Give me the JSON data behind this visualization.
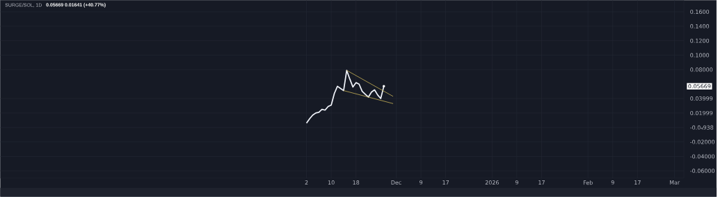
{
  "chart_data": {
    "type": "line",
    "title": "SURGE/SOL, 1D",
    "x": [
      "2025-11-02",
      "2025-11-03",
      "2025-11-04",
      "2025-11-05",
      "2025-11-06",
      "2025-11-07",
      "2025-11-08",
      "2025-11-09",
      "2025-11-10",
      "2025-11-11",
      "2025-11-12",
      "2025-11-13",
      "2025-11-14",
      "2025-11-15",
      "2025-11-16",
      "2025-11-17",
      "2025-11-18",
      "2025-11-19",
      "2025-11-20",
      "2025-11-21",
      "2025-11-22",
      "2025-11-23",
      "2025-11-24",
      "2025-11-25",
      "2025-11-26",
      "2025-11-27"
    ],
    "series": [
      {
        "color": "#f0f3fa",
        "values": [
          0.006,
          0.012,
          0.017,
          0.02,
          0.021,
          0.025,
          0.024,
          0.029,
          0.031,
          0.047,
          0.057,
          0.054,
          0.051,
          0.079,
          0.067,
          0.056,
          0.062,
          0.06,
          0.05,
          0.046,
          0.042,
          0.049,
          0.052,
          0.045,
          0.04,
          0.057
        ]
      },
      {
        "type": "line",
        "color": "#c9b458",
        "x": [
          "2025-11-15",
          "2025-11-30"
        ],
        "values": [
          0.079,
          0.043
        ]
      },
      {
        "type": "line",
        "color": "#c9b458",
        "x": [
          "2025-11-14",
          "2025-11-30"
        ],
        "values": [
          0.051,
          0.033
        ]
      }
    ],
    "xlim": [
      "2025-07-26",
      "2026-03-04"
    ],
    "xticks": [
      {
        "value": "2025-11-02",
        "label": "2"
      },
      {
        "value": "2025-11-10",
        "label": "10"
      },
      {
        "value": "2025-11-18",
        "label": "18"
      },
      {
        "value": "2025-12-01",
        "label": "Dec"
      },
      {
        "value": "2025-12-09",
        "label": "9"
      },
      {
        "value": "2025-12-17",
        "label": "17"
      },
      {
        "value": "2026-01-01",
        "label": "2026"
      },
      {
        "value": "2026-01-09",
        "label": "9"
      },
      {
        "value": "2026-01-17",
        "label": "17"
      },
      {
        "value": "2026-02-01",
        "label": "Feb"
      },
      {
        "value": "2026-02-09",
        "label": "9"
      },
      {
        "value": "2026-02-17",
        "label": "17"
      },
      {
        "value": "2026-03-01",
        "label": "Mar"
      }
    ],
    "ylim": [
      -0.07,
      0.176
    ],
    "yticks": [
      {
        "value": 0.16,
        "label": "0.1600"
      },
      {
        "value": 0.14,
        "label": "0.1400"
      },
      {
        "value": 0.12,
        "label": "0.1200"
      },
      {
        "value": 0.1,
        "label": "0.1000"
      },
      {
        "value": 0.08,
        "label": "0.08000"
      },
      0.03999,
      0.01999,
      {
        "value": -9.38e-05,
        "label": "-0.0₄938"
      },
      {
        "value": -0.02,
        "label": "-0.02000"
      },
      {
        "value": -0.04,
        "label": "-0.04000"
      },
      {
        "value": -0.06,
        "label": "-0.06000"
      }
    ],
    "annotations": [
      "0.05669 0.01641 (+40.77%)",
      "0.05669"
    ],
    "grid": true
  }
}
